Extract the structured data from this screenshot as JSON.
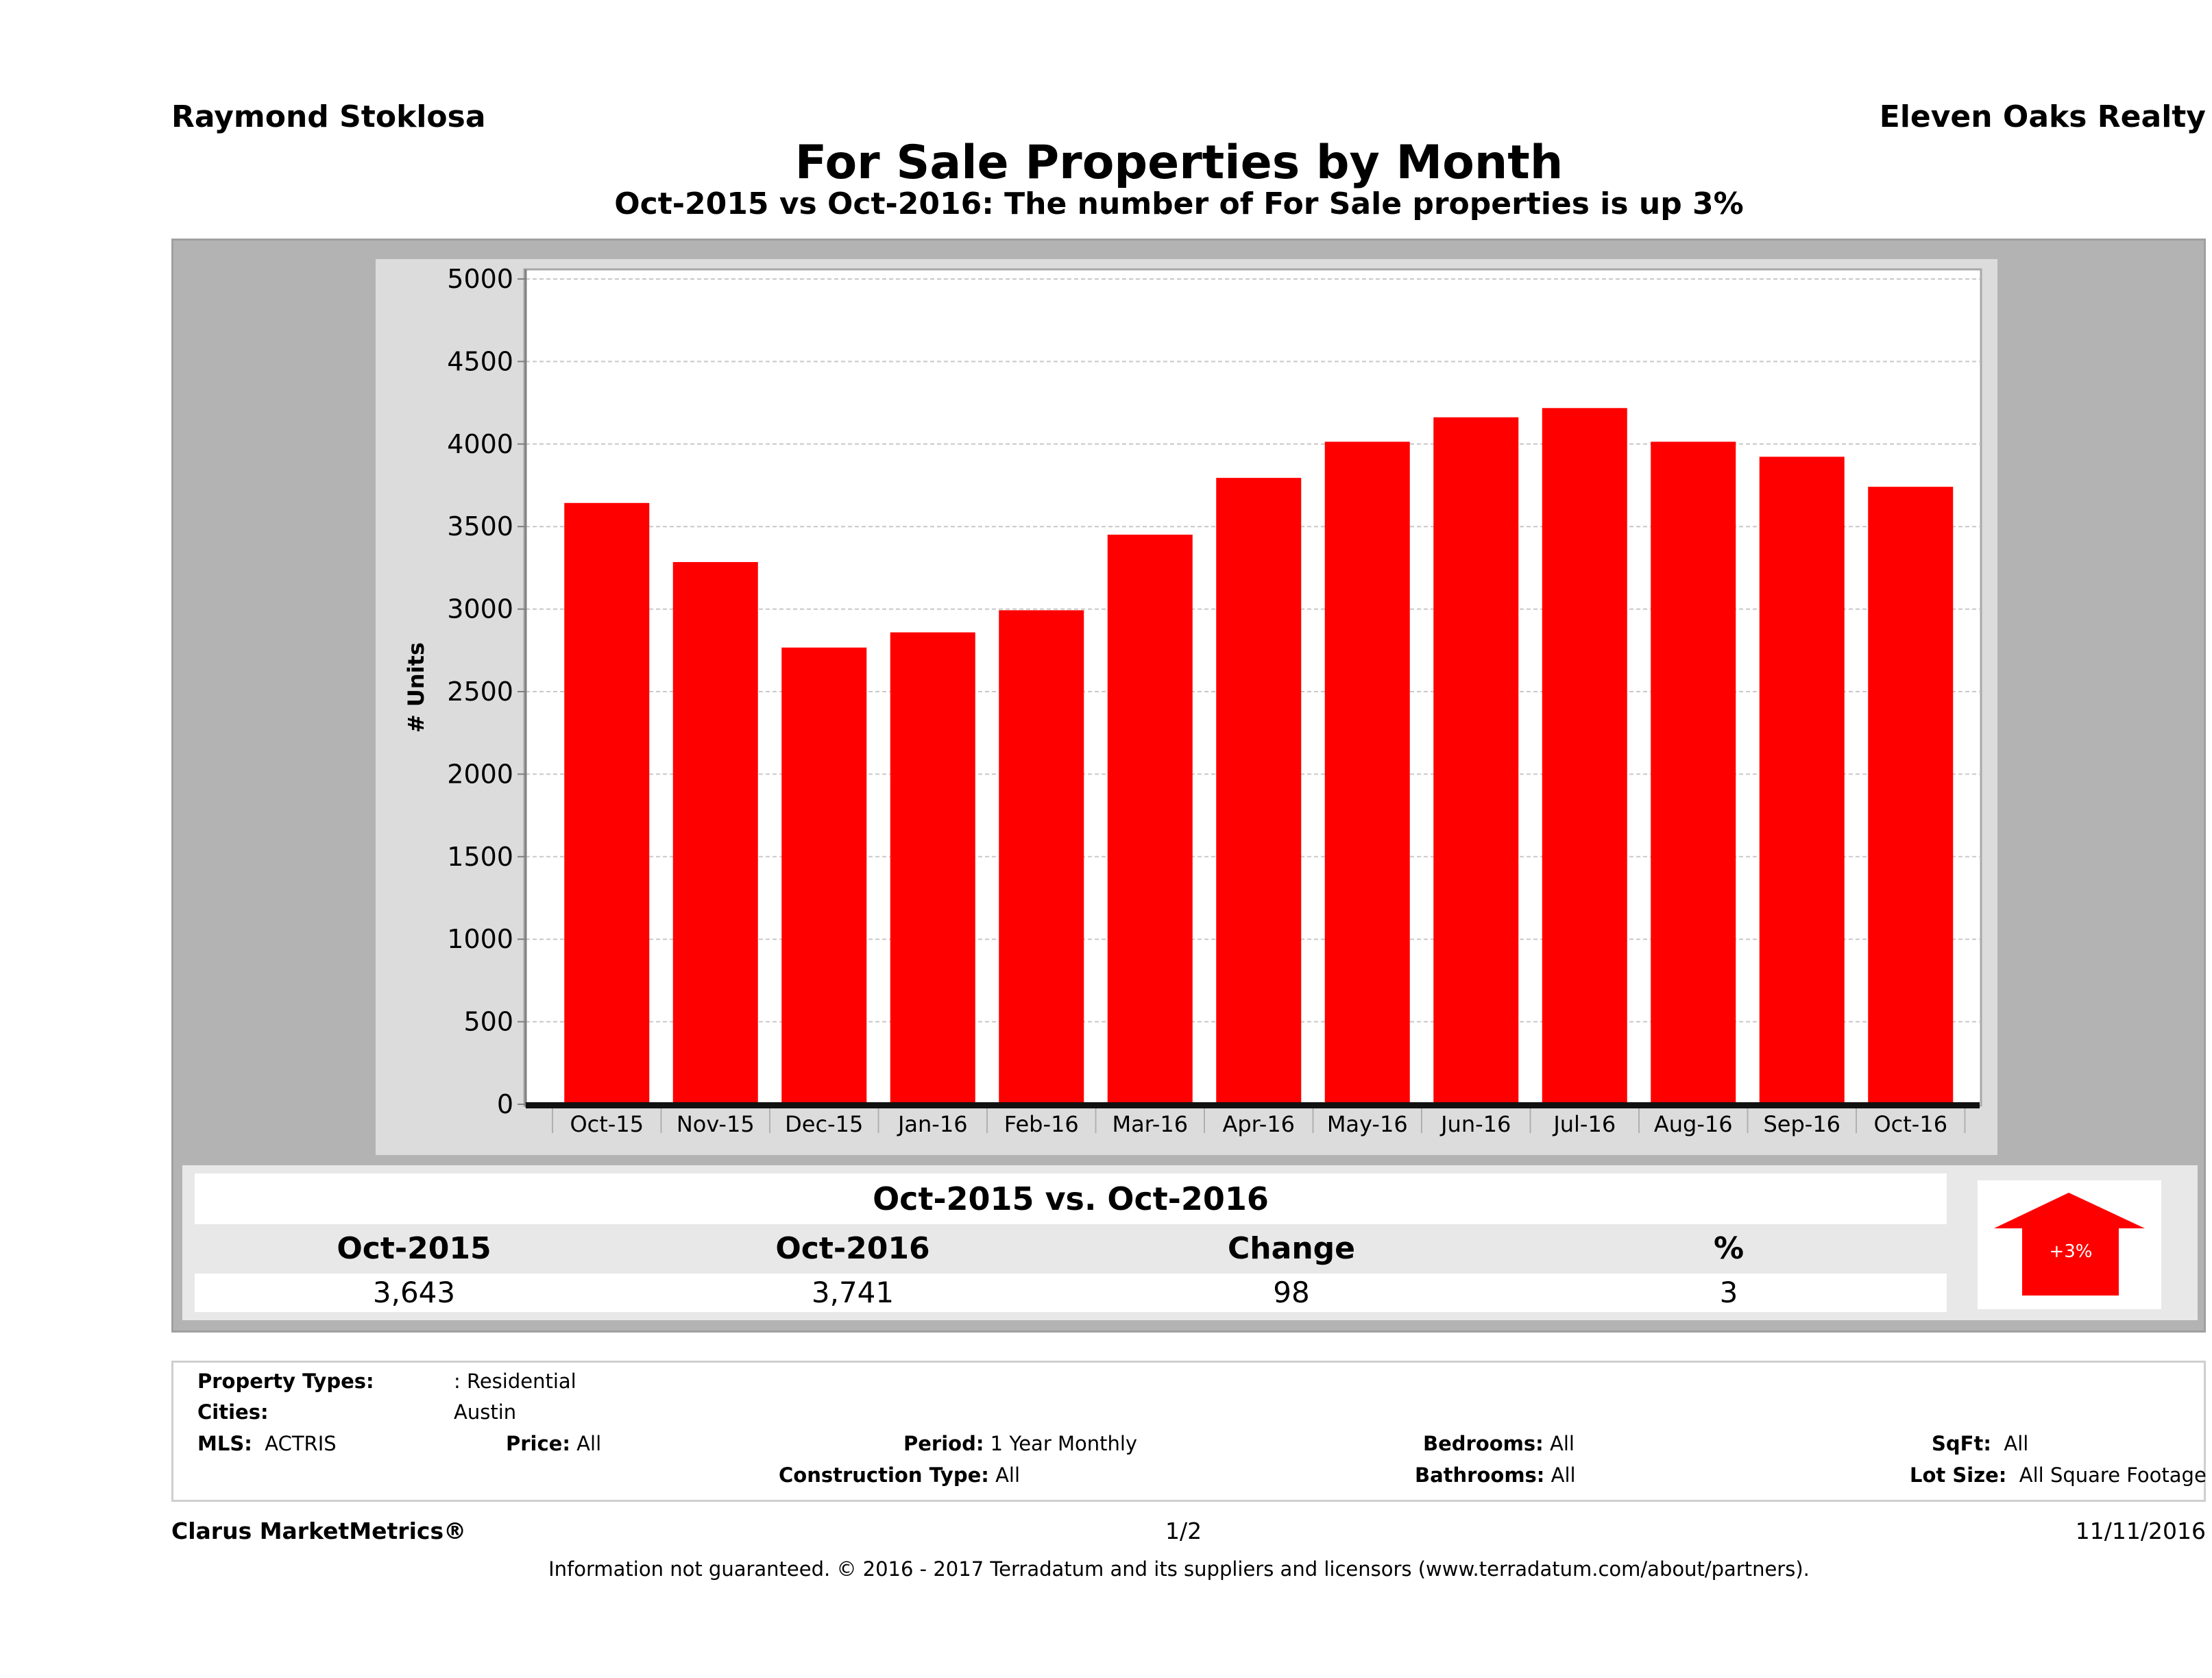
{
  "header": {
    "agent_name": "Raymond Stoklosa",
    "company_name": "Eleven Oaks Realty",
    "title": "For Sale Properties by Month",
    "subtitle": "Oct-2015 vs Oct-2016: The number of For Sale   properties is up 3%"
  },
  "colors": {
    "bar": "#ff0000",
    "arrow": "#ff0000",
    "outer_panel": "#b3b3b3",
    "chart_panel": "#dcdcdc",
    "plot_background": "#ffffff"
  },
  "chart_data": {
    "type": "bar",
    "title": "For Sale Properties by Month",
    "xlabel": "",
    "ylabel": "# Units",
    "ylim": [
      0,
      5000
    ],
    "yticks": [
      0,
      500,
      1000,
      1500,
      2000,
      2500,
      3000,
      3500,
      4000,
      4500,
      5000
    ],
    "grid": true,
    "legend": "none",
    "categories": [
      "Oct-15",
      "Nov-15",
      "Dec-15",
      "Jan-16",
      "Feb-16",
      "Mar-16",
      "Apr-16",
      "May-16",
      "Jun-16",
      "Jul-16",
      "Aug-16",
      "Sep-16",
      "Oct-16"
    ],
    "values": [
      3643,
      3285,
      2767,
      2859,
      2993,
      3451,
      3795,
      4014,
      4162,
      4218,
      4014,
      3923,
      3741
    ]
  },
  "summary": {
    "title": "Oct-2015 vs. Oct-2016",
    "headers": [
      "Oct-2015",
      "Oct-2016",
      "Change",
      "%"
    ],
    "values": [
      "3,643",
      "3,741",
      "98",
      "3"
    ],
    "badge": "+3%",
    "badge_icon": "up-arrow-icon"
  },
  "criteria": {
    "property_types_label": "Property Types:",
    "property_types_value": ": Residential",
    "cities_label": "Cities:",
    "cities_value": "Austin",
    "mls_label": "MLS:",
    "mls_value": "ACTRIS",
    "price_label": "Price:",
    "price_value": "All",
    "period_label": "Period:",
    "period_value": "1 Year Monthly",
    "construction_label": "Construction Type:",
    "construction_value": "All",
    "bedrooms_label": "Bedrooms:",
    "bedrooms_value": "All",
    "bathrooms_label": "Bathrooms:",
    "bathrooms_value": "All",
    "sqft_label": "SqFt:",
    "sqft_value": "All",
    "lot_size_label": "Lot Size:",
    "lot_size_value": "All Square Footage"
  },
  "footer": {
    "brand": "Clarus MarketMetrics®",
    "page": "1/2",
    "date": "11/11/2016",
    "disclaimer": "Information not guaranteed. © 2016 - 2017 Terradatum and its suppliers and licensors (www.terradatum.com/about/partners)."
  }
}
